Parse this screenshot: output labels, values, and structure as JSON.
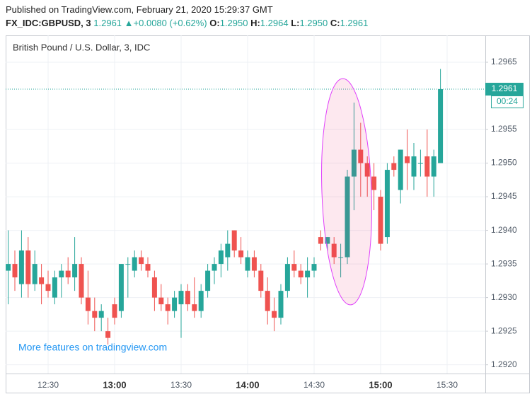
{
  "header": {
    "published": "Published on TradingView.com, February 21, 2020 15:29:37 GMT",
    "symbol": "FX_IDC:GBPUSD, 3",
    "last": "1.2961",
    "arrow": "▲",
    "change": "+0.0080 (+0.62%)",
    "o_label": "O:",
    "o": "1.2950",
    "h_label": "H:",
    "h": "1.2964",
    "l_label": "L:",
    "l": "1.2950",
    "c_label": "C:",
    "c": "1.2961"
  },
  "chart_data": {
    "type": "candlestick",
    "title": "British Pound / U.S. Dollar, 3, IDC",
    "watermark": "More features on tradingview.com",
    "x": [
      "12:12",
      "12:15",
      "12:18",
      "12:21",
      "12:24",
      "12:27",
      "12:30",
      "12:33",
      "12:36",
      "12:39",
      "12:42",
      "12:45",
      "12:48",
      "12:51",
      "12:54",
      "12:57",
      "13:00",
      "13:03",
      "13:06",
      "13:09",
      "13:12",
      "13:15",
      "13:18",
      "13:21",
      "13:24",
      "13:27",
      "13:30",
      "13:33",
      "13:36",
      "13:39",
      "13:42",
      "13:45",
      "13:48",
      "13:51",
      "13:54",
      "13:57",
      "14:00",
      "14:03",
      "14:06",
      "14:09",
      "14:12",
      "14:15",
      "14:18",
      "14:21",
      "14:24",
      "14:27",
      "14:30",
      "14:33",
      "14:36",
      "14:39",
      "14:42",
      "14:45",
      "14:48",
      "14:51",
      "14:54",
      "14:57",
      "15:00",
      "15:03",
      "15:06",
      "15:09",
      "15:12",
      "15:15",
      "15:18",
      "15:21",
      "15:24",
      "15:27"
    ],
    "open": [
      1.2934,
      1.2935,
      1.2932,
      1.2937,
      1.2932,
      1.2933,
      1.2932,
      1.293,
      1.2933,
      1.2934,
      1.2933,
      1.2935,
      1.293,
      1.2928,
      1.2927,
      1.2925,
      1.2929,
      1.2928,
      1.2935,
      1.2934,
      1.2936,
      1.2935,
      1.2933,
      1.293,
      1.2929,
      1.2928,
      1.2929,
      1.2931,
      1.2929,
      1.2928,
      1.2931,
      1.2934,
      1.2935,
      1.2936,
      1.294,
      1.2937,
      1.2934,
      1.2936,
      1.2934,
      1.2931,
      1.2928,
      1.2927,
      1.2931,
      1.2935,
      1.2934,
      1.2933,
      1.2934,
      1.2939,
      1.2938,
      1.2938,
      1.2936,
      1.2936,
      1.2948,
      1.2952,
      1.295,
      1.2948,
      1.2945,
      1.2939,
      1.295,
      1.2946,
      1.2951,
      1.2948,
      1.295,
      1.2951,
      1.2948,
      1.295
    ],
    "high": [
      1.294,
      1.2937,
      1.294,
      1.2939,
      1.2937,
      1.2935,
      1.2934,
      1.2934,
      1.2935,
      1.2936,
      1.2939,
      1.2936,
      1.2934,
      1.293,
      1.2929,
      1.2927,
      1.293,
      1.2935,
      1.2936,
      1.2937,
      1.2937,
      1.2936,
      1.2934,
      1.2932,
      1.293,
      1.2931,
      1.2932,
      1.2932,
      1.2933,
      1.2932,
      1.2935,
      1.2936,
      1.2938,
      1.294,
      1.294,
      1.2939,
      1.2937,
      1.2937,
      1.2935,
      1.2933,
      1.293,
      1.2932,
      1.2936,
      1.2937,
      1.2935,
      1.2936,
      1.2936,
      1.294,
      1.2939,
      1.2939,
      1.2938,
      1.2949,
      1.2959,
      1.2956,
      1.2951,
      1.295,
      1.2946,
      1.295,
      1.2951,
      1.2952,
      1.2955,
      1.2953,
      1.2952,
      1.2955,
      1.2952,
      1.2964
    ],
    "low": [
      1.2929,
      1.2931,
      1.293,
      1.293,
      1.2931,
      1.2929,
      1.293,
      1.2929,
      1.293,
      1.2932,
      1.2931,
      1.2929,
      1.2926,
      1.2925,
      1.2925,
      1.2923,
      1.2926,
      1.2927,
      1.293,
      1.2933,
      1.2934,
      1.2933,
      1.2928,
      1.2928,
      1.2926,
      1.2927,
      1.2924,
      1.2928,
      1.2927,
      1.2927,
      1.293,
      1.2932,
      1.2933,
      1.2934,
      1.2936,
      1.2935,
      1.2933,
      1.2933,
      1.293,
      1.2926,
      1.2925,
      1.2926,
      1.293,
      1.2933,
      1.2932,
      1.293,
      1.2933,
      1.2937,
      1.2937,
      1.2935,
      1.2933,
      1.2935,
      1.2943,
      1.2945,
      1.2945,
      1.2943,
      1.2937,
      1.2938,
      1.2948,
      1.2944,
      1.2946,
      1.2946,
      1.2948,
      1.2945,
      1.2945,
      1.295
    ],
    "close": [
      1.2935,
      1.2933,
      1.2937,
      1.2932,
      1.2935,
      1.2932,
      1.2931,
      1.2933,
      1.2934,
      1.2933,
      1.2935,
      1.293,
      1.2928,
      1.2927,
      1.2928,
      1.2924,
      1.2927,
      1.2935,
      1.2935,
      1.2936,
      1.2935,
      1.2934,
      1.293,
      1.2929,
      1.2928,
      1.293,
      1.2931,
      1.2929,
      1.2928,
      1.2931,
      1.2934,
      1.2935,
      1.2937,
      1.2938,
      1.2937,
      1.2936,
      1.2936,
      1.2934,
      1.2931,
      1.2928,
      1.2927,
      1.2931,
      1.2935,
      1.2934,
      1.2933,
      1.2934,
      1.2935,
      1.2938,
      1.2939,
      1.2936,
      1.2936,
      1.2948,
      1.2952,
      1.295,
      1.2948,
      1.2946,
      1.2938,
      1.2949,
      1.2949,
      1.2952,
      1.295,
      1.2951,
      1.295,
      1.2948,
      1.2951,
      1.2961
    ],
    "up_color": "#26a69a",
    "down_color": "#ef5350",
    "ylim": [
      1.29187,
      1.2969
    ],
    "yticks": [
      {
        "value": 1.292,
        "label": "1.2920"
      },
      1.2925,
      {
        "value": 1.293,
        "label": "1.2930"
      },
      1.2935,
      {
        "value": 1.294,
        "label": "1.2940"
      },
      1.2945,
      {
        "value": 1.295,
        "label": "1.2950"
      },
      1.2955,
      1.2965
    ],
    "xticks": [
      "12:30",
      "13:00",
      "13:30",
      "14:00",
      "14:30",
      "15:00",
      "15:30"
    ],
    "price_line": 1.2961,
    "countdown": "00:24",
    "grid": true
  }
}
